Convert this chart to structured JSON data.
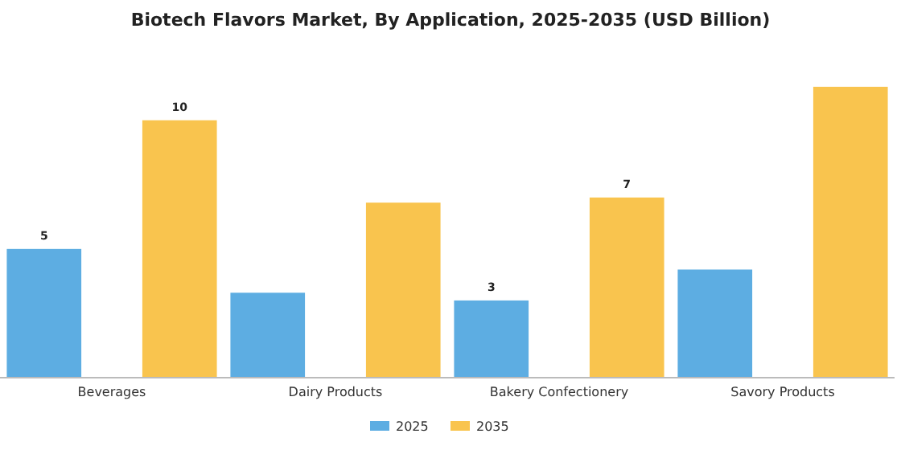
{
  "chart_data": {
    "type": "bar",
    "title": "Biotech Flavors Market, By Application, 2025-2035 (USD Billion)",
    "categories": [
      "Beverages",
      "Dairy Products",
      "Bakery Confectionery",
      "Savory Products"
    ],
    "series": [
      {
        "name": "2025",
        "color": "#5dade2",
        "values": [
          5,
          3.3,
          3,
          4.2
        ],
        "value_labels": [
          "5",
          null,
          "3",
          null
        ]
      },
      {
        "name": "2035",
        "color": "#f9c44e",
        "values": [
          10,
          6.8,
          7,
          11.3
        ],
        "value_labels": [
          "10",
          null,
          "7",
          null
        ]
      }
    ],
    "legend": "bottom"
  }
}
